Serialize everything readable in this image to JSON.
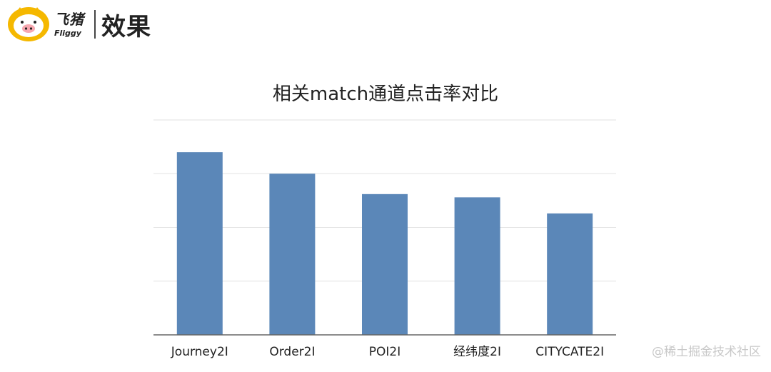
{
  "header": {
    "brand_cn": "飞猪",
    "brand_en": "Fliggy",
    "title": "效果",
    "accent_color": "#f5b800"
  },
  "watermark": "@稀土掘金技术社区",
  "chart_data": {
    "type": "bar",
    "title": "相关match通道点击率对比",
    "categories": [
      "Journey2I",
      "Order2I",
      "POI2I",
      "经纬度2I",
      "CITYCATE2I"
    ],
    "values": [
      0.85,
      0.75,
      0.655,
      0.64,
      0.565
    ],
    "ylim": [
      0,
      1
    ],
    "grid": true,
    "y_tick_labels_shown": false,
    "bar_color": "#5b87b8",
    "grid_color": "#e2e2e2",
    "axis_color": "#666666"
  }
}
